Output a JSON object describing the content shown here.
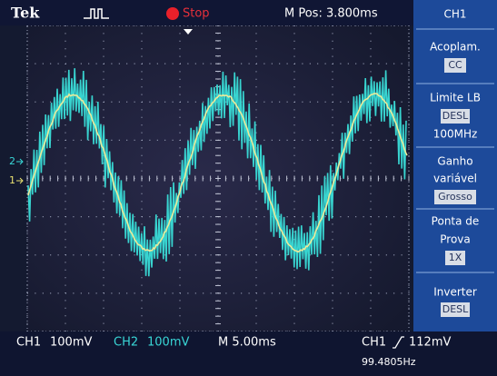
{
  "top_bar": {
    "brand": "Tek",
    "status": "Stop",
    "position": "M Pos: 3.800ms"
  },
  "menu": {
    "title": "CH1",
    "coupling": {
      "label": "Acoplam.",
      "value": "CC"
    },
    "bandwidth": {
      "label": "Limite LB",
      "value": "DESL",
      "extra": "100MHz"
    },
    "gain": {
      "label": [
        "Ganho",
        "variável"
      ],
      "value": "Grosso"
    },
    "probe": {
      "label": [
        "Ponta de",
        "Prova"
      ],
      "value": "1X"
    },
    "invert": {
      "label": "Inverter",
      "value": "DESL"
    }
  },
  "markers": [
    "2",
    "1"
  ],
  "bottom_bar": {
    "ch1": "CH1",
    "ch1_scale": "100mV",
    "ch2": "CH2",
    "ch2_scale": "100mV",
    "timebase": "M 5.00ms",
    "trigger_source": "CH1",
    "trigger_level": "112mV",
    "frequency": "99.4805Hz"
  }
}
